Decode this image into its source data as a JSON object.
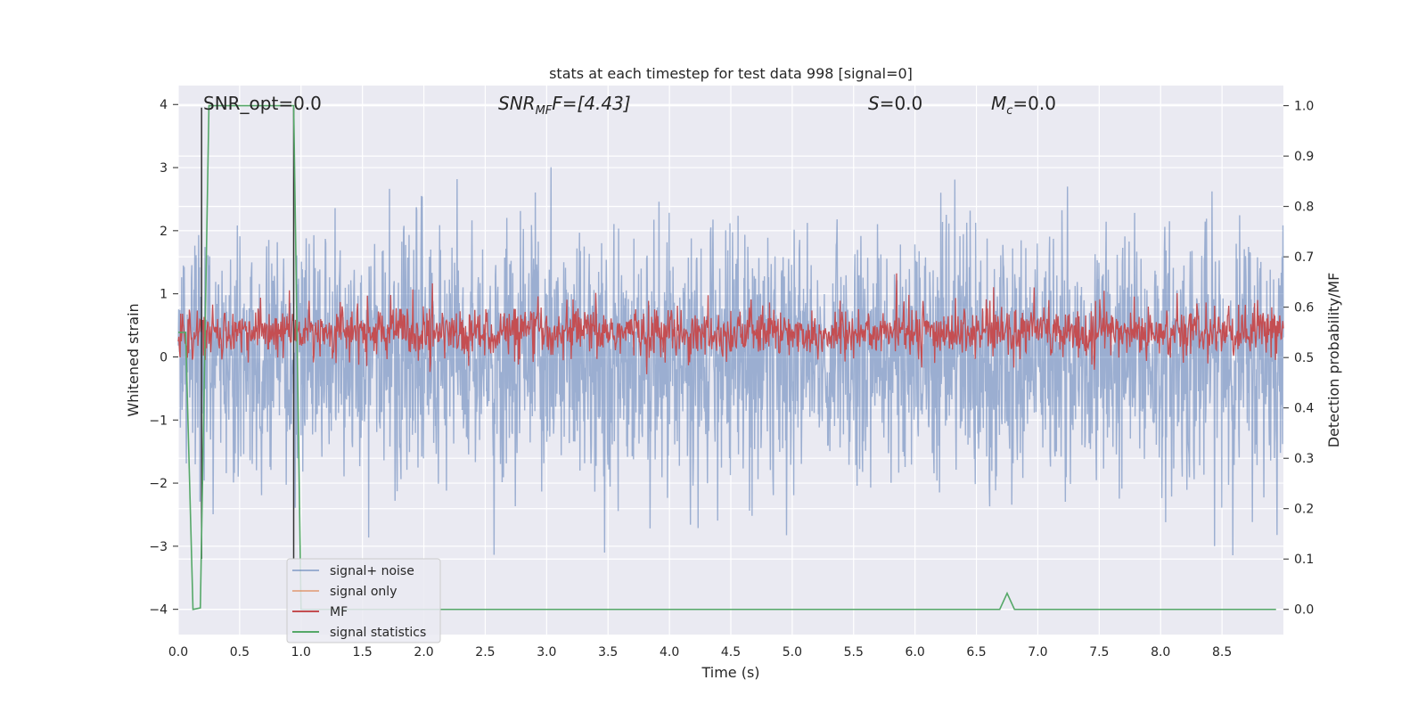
{
  "chart_data": {
    "type": "line",
    "title": "stats at each timestep for test data 998 [signal=0]",
    "xlabel": "Time (s)",
    "ylabel_left": "Whitened strain",
    "ylabel_right": "Detection probability/MF",
    "xlim": [
      0.0,
      9.0
    ],
    "ylim_left": [
      -4.4,
      4.3
    ],
    "ylim_right": [
      -0.05,
      1.04
    ],
    "x_ticks": [
      "0.0",
      "0.5",
      "1.0",
      "1.5",
      "2.0",
      "2.5",
      "3.0",
      "3.5",
      "4.0",
      "4.5",
      "5.0",
      "5.5",
      "6.0",
      "6.5",
      "7.0",
      "7.5",
      "8.0",
      "8.5"
    ],
    "y_ticks_left": [
      "−4",
      "−3",
      "−2",
      "−1",
      "0",
      "1",
      "2",
      "3",
      "4"
    ],
    "y_ticks_right": [
      "0.0",
      "0.1",
      "0.2",
      "0.3",
      "0.4",
      "0.5",
      "0.6",
      "0.7",
      "0.8",
      "0.9",
      "1.0"
    ],
    "grid": true,
    "annotations": {
      "snr_opt": "SNR_opt=0.0",
      "snr_mf_main": "SNR",
      "snr_mf_sub": "MF",
      "snr_mf_value": "F=[4.43]",
      "s_main": "S",
      "s_value": "=0.0",
      "mc_main": "M",
      "mc_sub": "c",
      "mc_value": "=0.0"
    },
    "legend": {
      "placement": "lower-left",
      "entries": [
        "signal+ noise",
        "signal only",
        "MF",
        "signal statistics"
      ]
    },
    "series": [
      {
        "name": "signal+ noise",
        "axis": "left",
        "color": "#4c72b0",
        "opacity": 0.5,
        "kind": "noise",
        "std": 1.0,
        "duration": 9.0
      },
      {
        "name": "signal only",
        "axis": "left",
        "color": "#dd8452",
        "values": []
      },
      {
        "name": "MF",
        "axis": "right",
        "color": "#c44e52",
        "kind": "noise",
        "mean": 0.55,
        "std": 0.025,
        "duration": 9.0
      },
      {
        "name": "signal statistics",
        "axis": "right",
        "color": "#55a868",
        "x": [
          0.0,
          0.06,
          0.12,
          0.18,
          0.25,
          0.94,
          1.0,
          1.06,
          6.69,
          6.75,
          6.81,
          8.94
        ],
        "values": [
          0.55,
          0.55,
          0.0,
          0.003,
          1.0,
          1.0,
          0.0,
          0.0,
          0.0,
          0.032,
          0.0,
          0.0
        ]
      }
    ],
    "markers": {
      "color": "#333333",
      "x": [
        0.19,
        0.94
      ]
    }
  }
}
